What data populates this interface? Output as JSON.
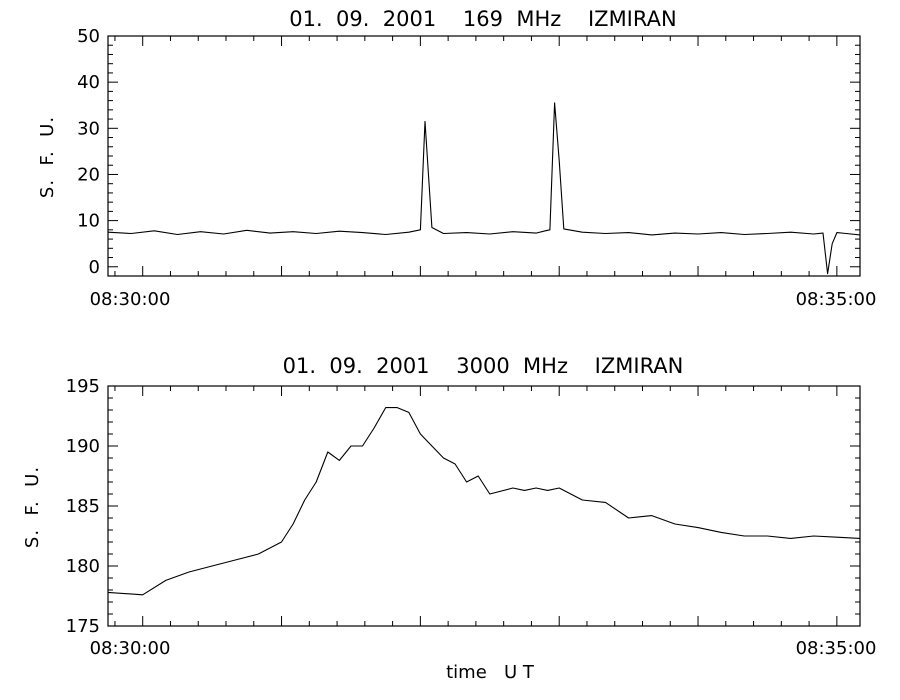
{
  "chart_data": [
    {
      "type": "line",
      "title": "01.  09.  2001    169  MHz    IZMIRAN",
      "ylabel": "S.  F.  U.",
      "xlabel": "",
      "x_unit": "time UT",
      "xlim": [
        "08:29:45",
        "08:35:10"
      ],
      "ylim": [
        -2,
        50
      ],
      "yticks": [
        0,
        10,
        20,
        30,
        40,
        50
      ],
      "xtick_labels": [
        "08:30:00",
        "08:35:00"
      ],
      "series": [
        {
          "x": [
            "08:29:45",
            "08:29:55",
            "08:30:05",
            "08:30:15",
            "08:30:25",
            "08:30:35",
            "08:30:45",
            "08:30:55",
            "08:31:05",
            "08:31:15",
            "08:31:25",
            "08:31:35",
            "08:31:45",
            "08:31:55",
            "08:32:00",
            "08:32:02",
            "08:32:05",
            "08:32:10",
            "08:32:20",
            "08:32:30",
            "08:32:40",
            "08:32:50",
            "08:32:54",
            "08:32:56",
            "08:32:58",
            "08:33:00",
            "08:33:02",
            "08:33:10",
            "08:33:20",
            "08:33:30",
            "08:33:40",
            "08:33:50",
            "08:34:00",
            "08:34:10",
            "08:34:20",
            "08:34:30",
            "08:34:40",
            "08:34:50",
            "08:34:54",
            "08:34:56",
            "08:34:58",
            "08:35:00",
            "08:35:04",
            "08:35:10"
          ],
          "y": [
            7.5,
            7.2,
            7.8,
            7,
            7.6,
            7.1,
            7.9,
            7.3,
            7.6,
            7.2,
            7.7,
            7.4,
            7,
            7.5,
            8,
            31.5,
            8.5,
            7.2,
            7.4,
            7.1,
            7.6,
            7.3,
            7.8,
            8,
            35.5,
            23,
            8.2,
            7.5,
            7.2,
            7.4,
            6.9,
            7.3,
            7.1,
            7.4,
            7,
            7.2,
            7.5,
            7.1,
            7.3,
            -1.5,
            5,
            7.4,
            7.2,
            6.9
          ]
        }
      ]
    },
    {
      "type": "line",
      "title": "01.  09.  2001    3000  MHz    IZMIRAN",
      "ylabel": "S.  F.  U.",
      "xlabel": "time   U T",
      "xlim": [
        "08:29:45",
        "08:35:10"
      ],
      "ylim": [
        175,
        195
      ],
      "yticks": [
        175,
        180,
        185,
        190,
        195
      ],
      "xtick_labels": [
        "08:30:00",
        "08:35:00"
      ],
      "series": [
        {
          "x": [
            "08:29:45",
            "08:30:00",
            "08:30:10",
            "08:30:20",
            "08:30:30",
            "08:30:40",
            "08:30:50",
            "08:31:00",
            "08:31:05",
            "08:31:10",
            "08:31:15",
            "08:31:20",
            "08:31:25",
            "08:31:30",
            "08:31:35",
            "08:31:40",
            "08:31:45",
            "08:31:50",
            "08:31:55",
            "08:32:00",
            "08:32:05",
            "08:32:10",
            "08:32:15",
            "08:32:20",
            "08:32:25",
            "08:32:30",
            "08:32:40",
            "08:32:45",
            "08:32:50",
            "08:32:55",
            "08:33:00",
            "08:33:10",
            "08:33:20",
            "08:33:30",
            "08:33:40",
            "08:33:50",
            "08:34:00",
            "08:34:10",
            "08:34:20",
            "08:34:30",
            "08:34:40",
            "08:34:50",
            "08:35:00",
            "08:35:10"
          ],
          "y": [
            177.8,
            177.6,
            178.8,
            179.5,
            180,
            180.5,
            181,
            182,
            183.5,
            185.5,
            187,
            189.5,
            188.8,
            190,
            190,
            191.5,
            193.2,
            193.2,
            192.8,
            191,
            190,
            189,
            188.5,
            187,
            187.5,
            186,
            186.5,
            186.3,
            186.5,
            186.3,
            186.5,
            185.5,
            185.3,
            184,
            184.2,
            183.5,
            183.2,
            182.8,
            182.5,
            182.5,
            182.3,
            182.5,
            182.4,
            182.3
          ]
        }
      ]
    }
  ]
}
